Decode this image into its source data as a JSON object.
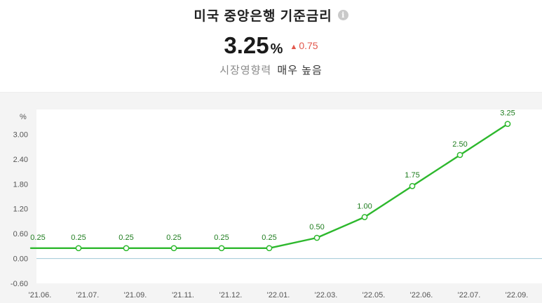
{
  "header": {
    "title": "미국 중앙은행 기준금리",
    "info_icon": "info-icon",
    "value": "3.25",
    "unit": "%",
    "change_icon": "triangle-up-icon",
    "change": "0.75",
    "impact_label": "시장영향력",
    "impact_value": "매우 높음"
  },
  "colors": {
    "line": "#2db82d",
    "change_up": "#e2574c",
    "zero_line": "#9fc8d6"
  },
  "chart_data": {
    "type": "line",
    "ylabel": "%",
    "yticks": [
      "3.00",
      "2.40",
      "1.80",
      "1.20",
      "0.60",
      "0.00",
      "-0.60"
    ],
    "ylim": [
      -0.6,
      3.6
    ],
    "categories": [
      "'21.06.",
      "'21.07.",
      "'21.09.",
      "'21.11.",
      "'21.12.",
      "'22.01.",
      "'22.03.",
      "'22.05.",
      "'22.06.",
      "'22.07.",
      "'22.09."
    ],
    "series": [
      {
        "values": [
          0.25,
          0.25,
          0.25,
          0.25,
          0.25,
          0.25,
          0.5,
          1.0,
          1.75,
          2.5,
          3.25
        ],
        "labels": [
          "0.25",
          "0.25",
          "0.25",
          "0.25",
          "0.25",
          "0.25",
          "0.50",
          "1.00",
          "1.75",
          "2.50",
          "3.25"
        ]
      }
    ],
    "grid": false
  }
}
